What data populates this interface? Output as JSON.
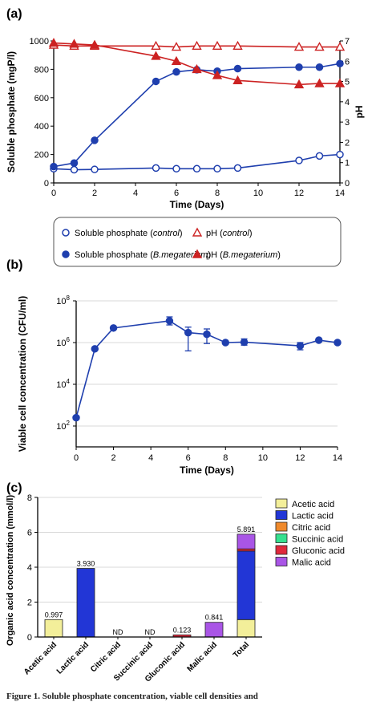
{
  "figure": {
    "caption_fragment": "Figure 1. Soluble phosphate concentration, viable cell densities and"
  },
  "chart_data": [
    {
      "panel_label": "(a)",
      "type": "line",
      "xlabel": "Time (Days)",
      "ylabel": "Soluble phosphate (mgP/l)",
      "y2label": "pH",
      "xlim": [
        0,
        14
      ],
      "ylim": [
        0,
        1000
      ],
      "y2lim": [
        0,
        7
      ],
      "xticks": [
        "0",
        "2",
        "4",
        "6",
        "8",
        "10",
        "12",
        "14"
      ],
      "yticks": [
        "0",
        "200",
        "400",
        "600",
        "800",
        "1000"
      ],
      "y2ticks": [
        "0",
        "1",
        "2",
        "3",
        "4",
        "5",
        "6",
        "7"
      ],
      "grid": false,
      "series": [
        {
          "name": "Soluble phosphate (control)",
          "axis": "left",
          "color": "#1f3fae",
          "marker": "circle-open",
          "x": [
            0,
            1,
            2,
            5,
            6,
            7,
            8,
            9,
            12,
            13,
            14
          ],
          "y": [
            100,
            93,
            95,
            105,
            100,
            100,
            100,
            105,
            158,
            190,
            200
          ]
        },
        {
          "name": "Soluble phosphate (B.megaterium)",
          "axis": "left",
          "color": "#1f3fae",
          "marker": "circle-filled",
          "x": [
            0,
            1,
            2,
            5,
            6,
            7,
            8,
            9,
            12,
            13,
            14
          ],
          "y": [
            115,
            140,
            300,
            715,
            782,
            797,
            787,
            805,
            815,
            815,
            840
          ]
        },
        {
          "name": "pH (control)",
          "axis": "right",
          "color": "#cc2222",
          "marker": "triangle-open",
          "x": [
            0,
            1,
            2,
            5,
            6,
            7,
            8,
            9,
            12,
            13,
            14
          ],
          "y": [
            6.8,
            6.75,
            6.75,
            6.75,
            6.7,
            6.75,
            6.75,
            6.75,
            6.7,
            6.7,
            6.7
          ]
        },
        {
          "name": "pH (B.megaterium)",
          "axis": "right",
          "color": "#cc2222",
          "marker": "triangle-filled",
          "x": [
            0,
            1,
            2,
            5,
            6,
            7,
            8,
            9,
            12,
            13,
            14
          ],
          "y": [
            6.9,
            6.85,
            6.8,
            6.25,
            6.0,
            5.6,
            5.3,
            5.05,
            4.85,
            4.9,
            4.9
          ]
        }
      ],
      "legend": {
        "position": "bottom",
        "items": [
          {
            "prefix": "Soluble phosphate (",
            "italic": "control",
            "suffix": ")",
            "series": 0
          },
          {
            "prefix": "pH (",
            "italic": "control",
            "suffix": ")",
            "series": 2
          },
          {
            "prefix": "Soluble phosphate (",
            "italic": "B.megaterium",
            "suffix": ")",
            "series": 1
          },
          {
            "prefix": "pH (",
            "italic": "B.megaterium",
            "suffix": ")",
            "series": 3
          }
        ]
      }
    },
    {
      "panel_label": "(b)",
      "type": "line",
      "xlabel": "Time (Days)",
      "ylabel": "Viable cell concentration (CFU/ml)",
      "yscale": "log",
      "xlim": [
        0,
        14
      ],
      "ylim": [
        10,
        100000000
      ],
      "xticks": [
        "0",
        "2",
        "4",
        "6",
        "8",
        "10",
        "12",
        "14"
      ],
      "yticks": [
        {
          "base": "10",
          "exp": "2"
        },
        {
          "base": "10",
          "exp": "4"
        },
        {
          "base": "10",
          "exp": "6"
        },
        {
          "base": "10",
          "exp": "8"
        }
      ],
      "grid": true,
      "series": [
        {
          "color": "#1f3fae",
          "marker": "circle-filled",
          "x": [
            0,
            1,
            2,
            5,
            6,
            7,
            8,
            9,
            12,
            13,
            14
          ],
          "y": [
            250,
            500000,
            5000000,
            11000000,
            3000000,
            2500000,
            1000000,
            1050000,
            700000,
            1300000,
            1000000
          ],
          "err_low": [
            0,
            0,
            0,
            7000000,
            400000,
            900000,
            0,
            750000,
            450000,
            0,
            0
          ],
          "err_high": [
            0,
            0,
            0,
            17000000,
            5500000,
            4500000,
            0,
            1500000,
            1000000,
            0,
            0
          ]
        }
      ]
    },
    {
      "panel_label": "(c)",
      "type": "bar",
      "stacked": true,
      "ylabel": "Organic acid concentration (mmol/l)",
      "ylim": [
        0,
        8
      ],
      "yticks": [
        "0",
        "2",
        "4",
        "6",
        "8"
      ],
      "grid": true,
      "categories": [
        "Acetic acid",
        "Lactic acid",
        "Citric acid",
        "Succinic acid",
        "Gluconic acid",
        "Malic acid",
        "Total"
      ],
      "legend_position": "right",
      "series": [
        {
          "name": "Acetic acid",
          "color": "#f3ef9a",
          "values": [
            0.997,
            0,
            0,
            0,
            0,
            0,
            0.997
          ]
        },
        {
          "name": "Lactic acid",
          "color": "#2236d6",
          "values": [
            0,
            3.93,
            0,
            0,
            0,
            0,
            3.93
          ]
        },
        {
          "name": "Citric acid",
          "color": "#f08a2c",
          "values": [
            0,
            0,
            0,
            0,
            0,
            0,
            0
          ]
        },
        {
          "name": "Succinic acid",
          "color": "#35e08f",
          "values": [
            0,
            0,
            0,
            0,
            0,
            0,
            0
          ]
        },
        {
          "name": "Gluconic acid",
          "color": "#e0283c",
          "values": [
            0,
            0,
            0,
            0,
            0.123,
            0,
            0.123
          ]
        },
        {
          "name": "Malic acid",
          "color": "#a955e6",
          "values": [
            0,
            0,
            0,
            0,
            0,
            0.841,
            0.841
          ]
        }
      ],
      "bar_labels": [
        "0.997",
        "3.930",
        "ND",
        "ND",
        "0.123",
        "0.841",
        "5.891"
      ]
    }
  ]
}
